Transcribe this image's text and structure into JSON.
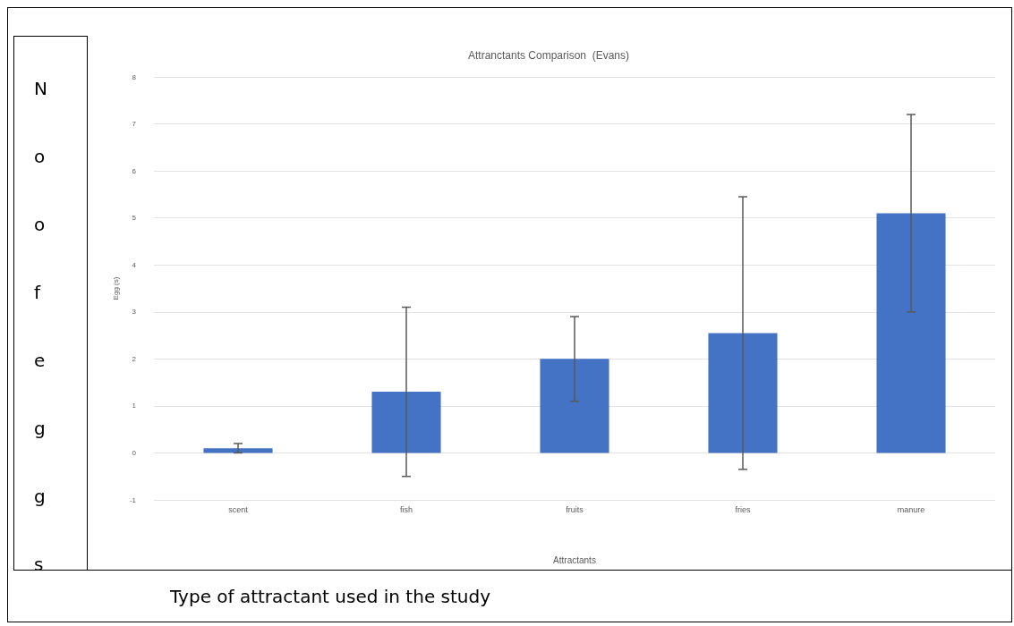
{
  "chart_data": {
    "type": "bar",
    "title": "Attranctants Comparison  (Evans)",
    "xlabel": "Attractants",
    "ylabel": "Egg (s)",
    "categories": [
      "scent",
      "fish",
      "fruits",
      "fries",
      "manure"
    ],
    "values": [
      0.1,
      1.3,
      2.0,
      2.55,
      5.1
    ],
    "errors": [
      0.1,
      1.8,
      0.9,
      2.9,
      2.1
    ],
    "color": "#4472c4",
    "ylim": [
      -1,
      8
    ],
    "yticks": [
      -1,
      0,
      1,
      2,
      3,
      4,
      5,
      6,
      7,
      8
    ],
    "grid": "y",
    "annotations": [
      "No of eggs",
      "Type of attractant used in the study"
    ]
  }
}
